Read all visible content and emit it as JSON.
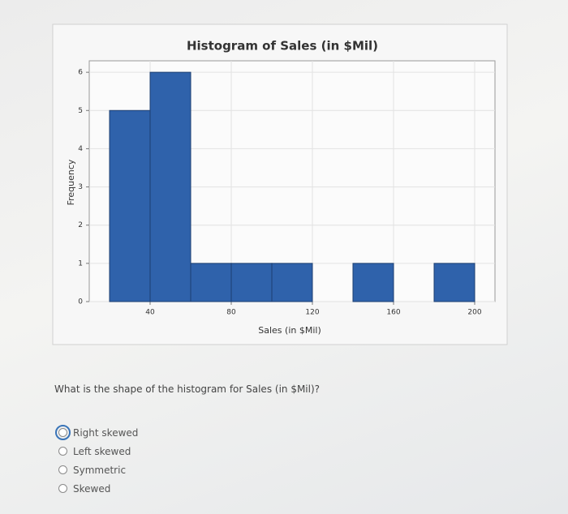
{
  "chart_data": {
    "type": "histogram",
    "title": "Histogram of Sales (in $Mil)",
    "x_label": "Sales (in $Mil)",
    "y_label": "Frequency",
    "bins": [
      20,
      40,
      60,
      80,
      100,
      120,
      140,
      160,
      180,
      200
    ],
    "values": [
      5,
      6,
      1,
      1,
      1,
      0,
      1,
      0,
      1
    ],
    "color": "#2f62ab",
    "xlim": [
      10,
      210
    ],
    "ylim": [
      0,
      6.3
    ],
    "xticks": [
      40,
      80,
      120,
      160,
      200
    ],
    "yticks": [
      0,
      1,
      2,
      3,
      4,
      5,
      6
    ],
    "grid": true
  },
  "question": {
    "text": "What is the shape of the histogram for Sales (in $Mil)?",
    "options": [
      "Right skewed",
      "Left skewed",
      "Symmetric",
      "Skewed"
    ],
    "selected": 0
  }
}
